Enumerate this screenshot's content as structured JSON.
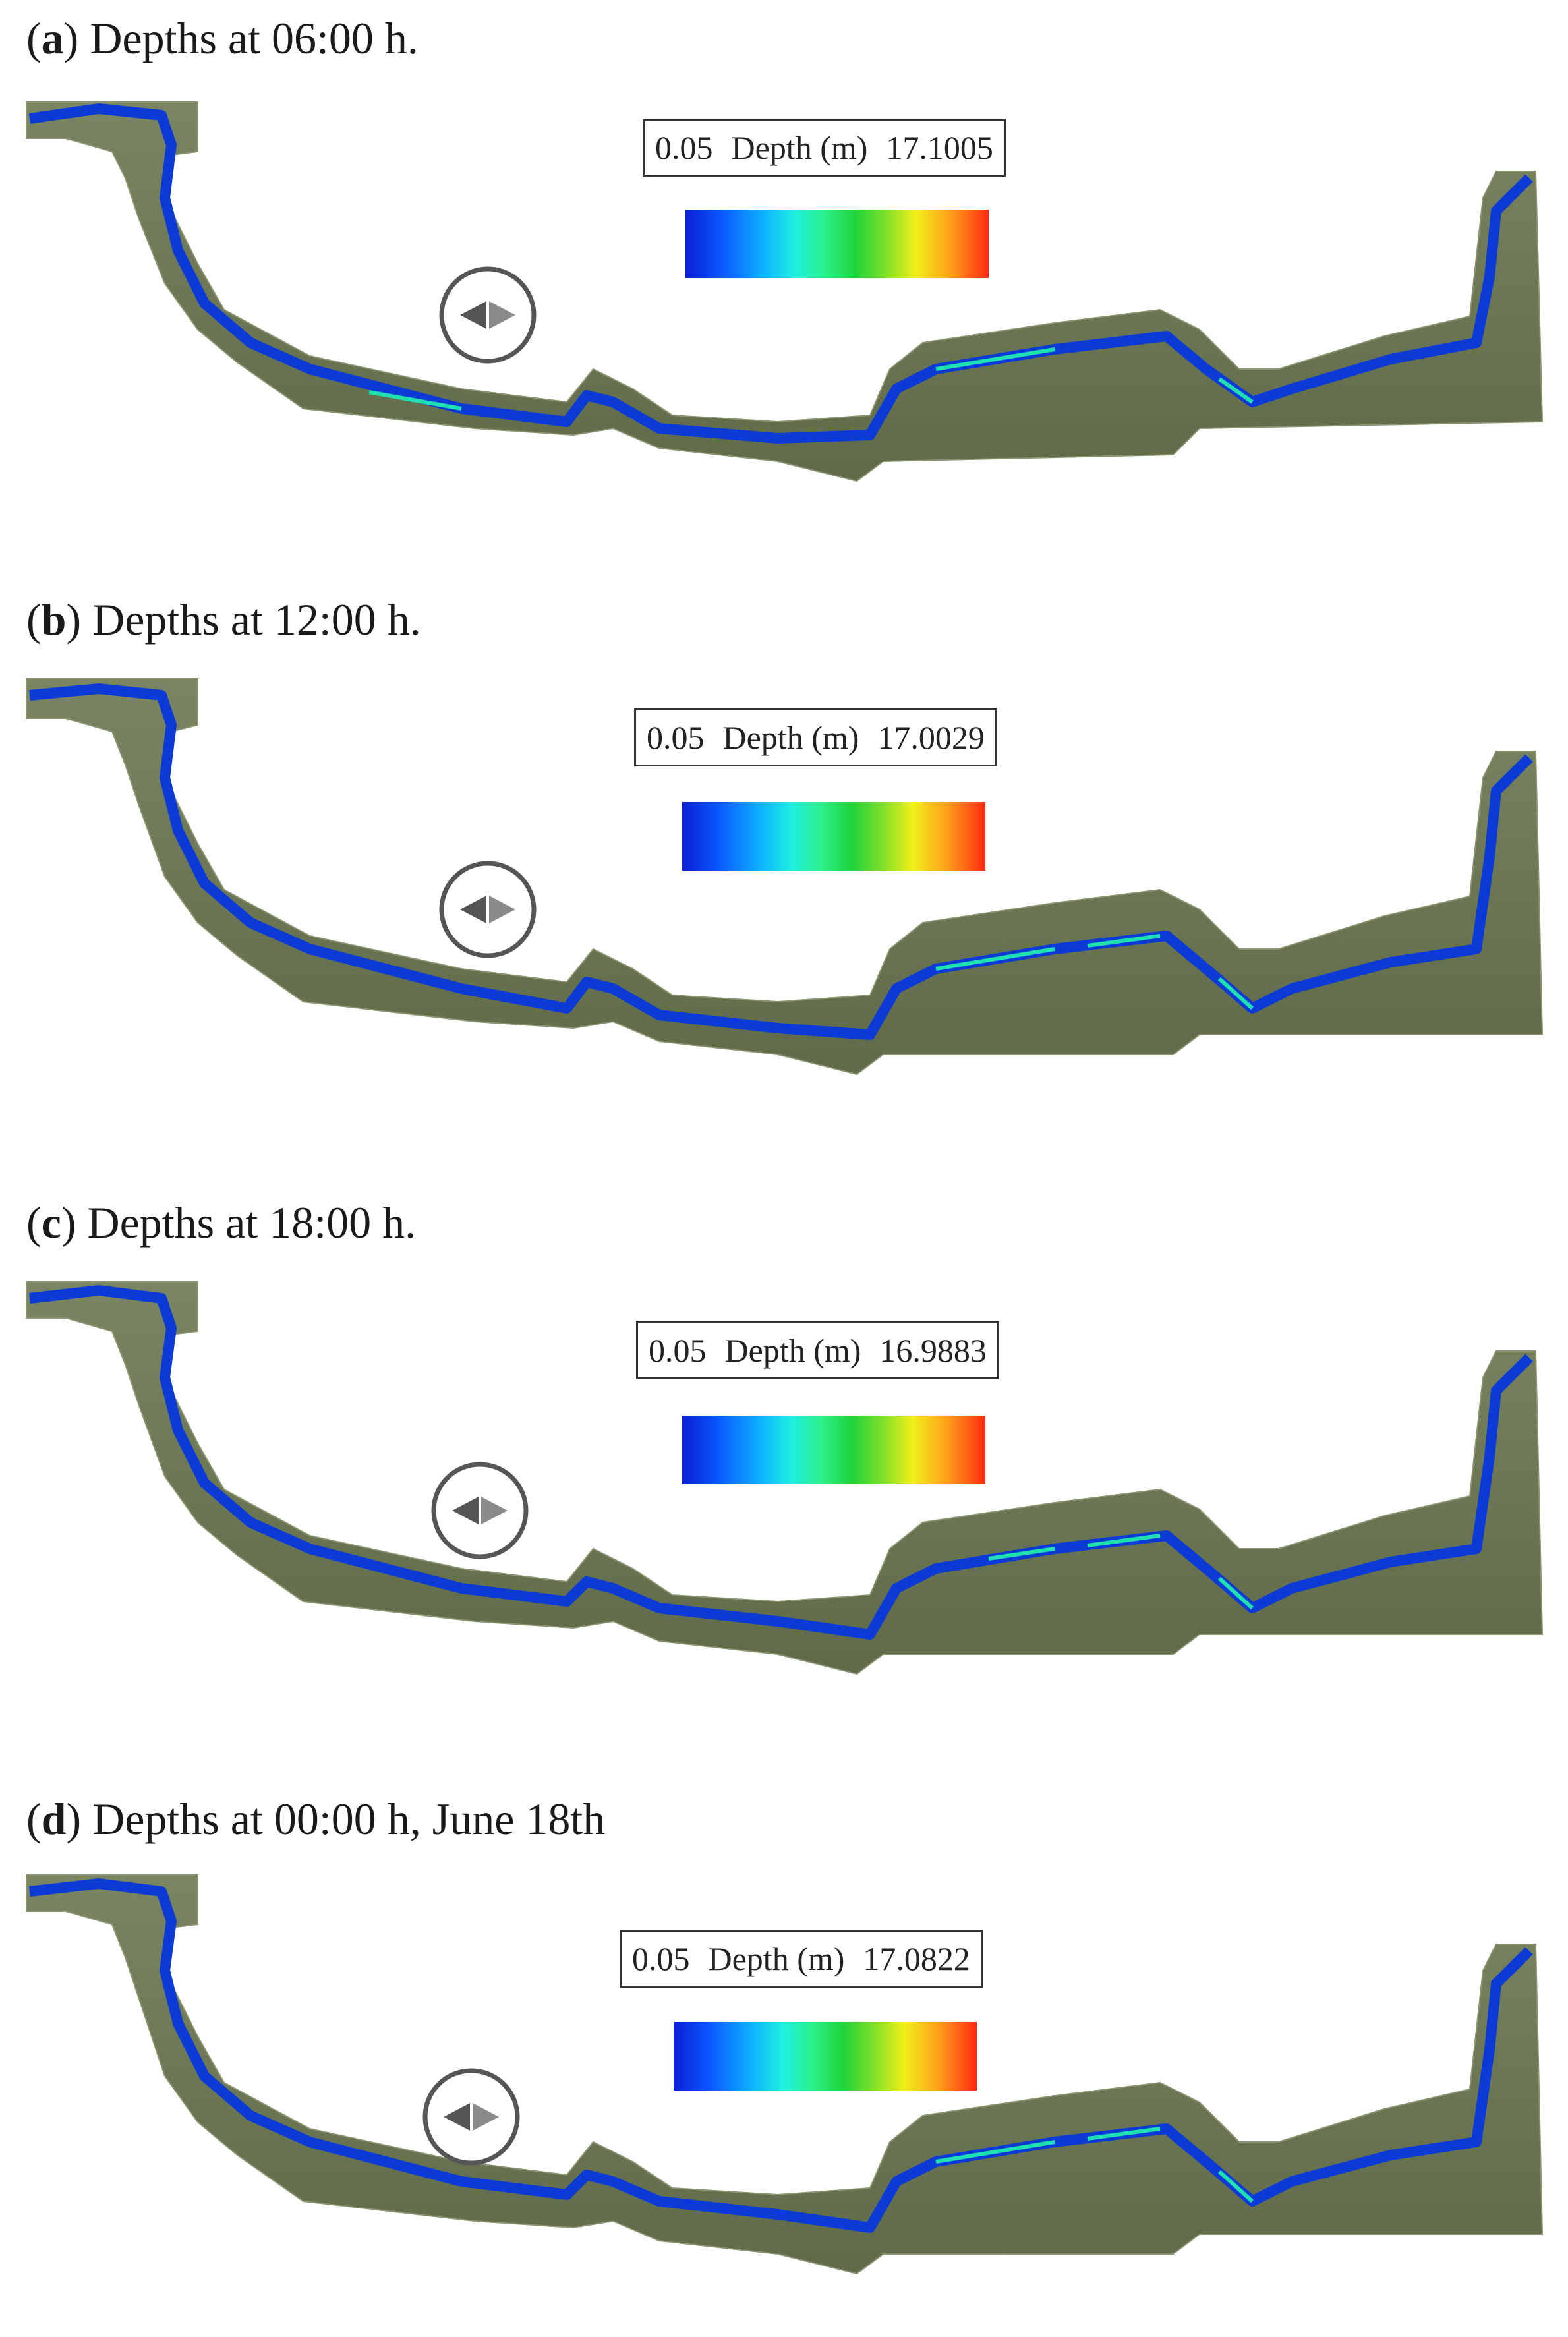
{
  "panels": [
    {
      "letter": "a",
      "title": "Depths at 06:00 h.",
      "legend": {
        "min": "0.05",
        "label": "Depth (m)",
        "max": "17.1005"
      }
    },
    {
      "letter": "b",
      "title": "Depths at 12:00 h.",
      "legend": {
        "min": "0.05",
        "label": "Depth (m)",
        "max": "17.0029"
      }
    },
    {
      "letter": "c",
      "title": "Depths at 18:00 h.",
      "legend": {
        "min": "0.05",
        "label": "Depth (m)",
        "max": "16.9883"
      }
    },
    {
      "letter": "d",
      "title": "Depths at 00:00 h, June 18th",
      "legend": {
        "min": "0.05",
        "label": "Depth (m)",
        "max": "17.0822"
      }
    }
  ],
  "icons": {
    "compass": "north-arrow-icon"
  },
  "colors": {
    "river_shallow": "#0b1fd6",
    "river_mid": "#1ef0e0",
    "river_deep": "#ff2a12",
    "terrain": "#6f7a58"
  }
}
